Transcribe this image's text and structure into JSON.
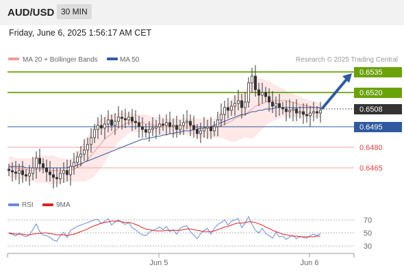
{
  "header": {
    "symbol": "AUD/USD",
    "timeframe": "30 MIN",
    "datetime": "Friday, June 6, 2025 1:56:17 AM CET"
  },
  "colors": {
    "bullish": "#6aa20a",
    "bearish": "#e04040",
    "ma50": "#2f5aa0",
    "bollinger": "#f29a9a",
    "current": "#333333",
    "rsi": "#6688dd",
    "rsi_ma": "#e02020",
    "candle": "#333333"
  },
  "chart_data": [
    {
      "type": "candlestick",
      "legend": [
        {
          "name": "MA 20 + Bollinger Bands",
          "color": "#f29a9a"
        },
        {
          "name": "MA 50",
          "color": "#2f5aa0"
        }
      ],
      "credit": "Research © 2025 Trading Central",
      "x_tick_labels": [
        "Jun 5",
        "Jun 6"
      ],
      "ylim": [
        0.6458,
        0.6549
      ],
      "levels": [
        {
          "value": 0.6535,
          "label": "0.6535",
          "type": "resistance"
        },
        {
          "value": 0.652,
          "label": "0.6520",
          "type": "resistance"
        },
        {
          "value": 0.6508,
          "label": "0.6508",
          "type": "current"
        },
        {
          "value": 0.6495,
          "label": "0.6495",
          "type": "pivot"
        },
        {
          "value": 0.648,
          "label": "0.6480",
          "type": "support"
        },
        {
          "value": 0.6465,
          "label": "0.6465",
          "type": "support"
        }
      ],
      "arrow": {
        "from": 0.6508,
        "to": 0.6535,
        "direction": "up"
      },
      "close": [
        0.6463,
        0.6462,
        0.6461,
        0.6463,
        0.646,
        0.6459,
        0.6461,
        0.6465,
        0.6472,
        0.6468,
        0.6465,
        0.6462,
        0.646,
        0.6458,
        0.6457,
        0.6461,
        0.6463,
        0.646,
        0.6466,
        0.6469,
        0.6473,
        0.6475,
        0.6478,
        0.6482,
        0.6487,
        0.6493,
        0.6496,
        0.6494,
        0.6497,
        0.65,
        0.6496,
        0.6499,
        0.6502,
        0.6501,
        0.65,
        0.6502,
        0.6499,
        0.6498,
        0.6495,
        0.6493,
        0.6491,
        0.6493,
        0.6494,
        0.6495,
        0.6497,
        0.6496,
        0.6498,
        0.6495,
        0.6496,
        0.6493,
        0.6496,
        0.6498,
        0.6499,
        0.6496,
        0.6493,
        0.649,
        0.6492,
        0.6494,
        0.6495,
        0.6492,
        0.6495,
        0.65,
        0.6504,
        0.6509,
        0.6507,
        0.651,
        0.6512,
        0.6514,
        0.6509,
        0.6513,
        0.6527,
        0.6532,
        0.6522,
        0.6518,
        0.652,
        0.6517,
        0.6513,
        0.651,
        0.6512,
        0.6509,
        0.6508,
        0.6506,
        0.6507,
        0.6508,
        0.6505,
        0.6506,
        0.6504,
        0.6503,
        0.6505,
        0.6506,
        0.6505,
        0.6507
      ],
      "ma20": [
        0.6466,
        0.6465,
        0.6465,
        0.6464,
        0.6464,
        0.6464,
        0.6463,
        0.6463,
        0.6464,
        0.6464,
        0.6464,
        0.6464,
        0.6463,
        0.6463,
        0.6463,
        0.6463,
        0.6463,
        0.6463,
        0.6463,
        0.6464,
        0.6465,
        0.6467,
        0.6469,
        0.6471,
        0.6474,
        0.6477,
        0.648,
        0.6483,
        0.6486,
        0.6488,
        0.649,
        0.6492,
        0.6494,
        0.6496,
        0.6497,
        0.6498,
        0.6498,
        0.6498,
        0.6498,
        0.6498,
        0.6497,
        0.6497,
        0.6496,
        0.6496,
        0.6496,
        0.6495,
        0.6495,
        0.6495,
        0.6495,
        0.6495,
        0.6495,
        0.6495,
        0.6495,
        0.6495,
        0.6495,
        0.6494,
        0.6494,
        0.6494,
        0.6494,
        0.6494,
        0.6494,
        0.6495,
        0.6496,
        0.6497,
        0.6498,
        0.6499,
        0.6501,
        0.6502,
        0.6503,
        0.6504,
        0.6506,
        0.6508,
        0.651,
        0.6511,
        0.6512,
        0.6513,
        0.6514,
        0.6514,
        0.6514,
        0.6514,
        0.6514,
        0.6514,
        0.6513,
        0.6513,
        0.6512,
        0.6511,
        0.6511,
        0.651,
        0.651,
        0.6509,
        0.6509,
        0.6508
      ],
      "ma50": [
        0.6466,
        0.6466,
        0.6466,
        0.6466,
        0.6466,
        0.6465,
        0.6465,
        0.6465,
        0.6465,
        0.6465,
        0.6465,
        0.6465,
        0.6465,
        0.6465,
        0.6465,
        0.6465,
        0.6465,
        0.6465,
        0.6466,
        0.6466,
        0.6467,
        0.6468,
        0.6469,
        0.647,
        0.6471,
        0.6472,
        0.6473,
        0.6474,
        0.6475,
        0.6476,
        0.6477,
        0.6478,
        0.6479,
        0.648,
        0.6481,
        0.6482,
        0.6483,
        0.6484,
        0.6485,
        0.6486,
        0.6486,
        0.6487,
        0.6487,
        0.6488,
        0.6488,
        0.6489,
        0.6489,
        0.649,
        0.649,
        0.6491,
        0.6491,
        0.6492,
        0.6492,
        0.6492,
        0.6493,
        0.6493,
        0.6494,
        0.6494,
        0.6495,
        0.6495,
        0.6496,
        0.6497,
        0.6498,
        0.6499,
        0.65,
        0.6501,
        0.6502,
        0.6503,
        0.6504,
        0.6504,
        0.6505,
        0.6506,
        0.6506,
        0.6507,
        0.6507,
        0.6508,
        0.6508,
        0.6508,
        0.6509,
        0.6509,
        0.6509,
        0.6509,
        0.6509,
        0.6509,
        0.6509,
        0.6509,
        0.6509,
        0.6509,
        0.6509,
        0.6509,
        0.6509,
        0.6509
      ],
      "bb_upper": [
        0.6474,
        0.6473,
        0.6472,
        0.6472,
        0.6472,
        0.6472,
        0.6472,
        0.6472,
        0.6474,
        0.6474,
        0.6474,
        0.6474,
        0.6474,
        0.6474,
        0.6473,
        0.6472,
        0.6472,
        0.6471,
        0.6471,
        0.6473,
        0.6476,
        0.648,
        0.6484,
        0.6488,
        0.6492,
        0.6496,
        0.6499,
        0.6501,
        0.6503,
        0.6504,
        0.6504,
        0.6504,
        0.6505,
        0.6505,
        0.6505,
        0.6505,
        0.6505,
        0.6504,
        0.6504,
        0.6504,
        0.6504,
        0.6503,
        0.6502,
        0.6502,
        0.6502,
        0.6502,
        0.6501,
        0.6501,
        0.6501,
        0.6501,
        0.6501,
        0.6501,
        0.6501,
        0.6501,
        0.6501,
        0.6501,
        0.6501,
        0.6501,
        0.6501,
        0.6501,
        0.6501,
        0.6503,
        0.6506,
        0.6509,
        0.6512,
        0.6515,
        0.6517,
        0.6519,
        0.652,
        0.6522,
        0.6526,
        0.6531,
        0.6532,
        0.6531,
        0.653,
        0.6529,
        0.6528,
        0.6527,
        0.6525,
        0.6524,
        0.6523,
        0.6521,
        0.652,
        0.6519,
        0.6518,
        0.6517,
        0.6516,
        0.6515,
        0.6514,
        0.6514,
        0.6513,
        0.6513
      ],
      "bb_lower": [
        0.6458,
        0.6458,
        0.6458,
        0.6457,
        0.6457,
        0.6456,
        0.6455,
        0.6455,
        0.6454,
        0.6454,
        0.6454,
        0.6454,
        0.6453,
        0.6453,
        0.6453,
        0.6454,
        0.6454,
        0.6455,
        0.6455,
        0.6455,
        0.6455,
        0.6455,
        0.6455,
        0.6456,
        0.6457,
        0.6459,
        0.6462,
        0.6465,
        0.6469,
        0.6473,
        0.6477,
        0.6481,
        0.6484,
        0.6486,
        0.6488,
        0.649,
        0.6491,
        0.6491,
        0.6491,
        0.6491,
        0.649,
        0.649,
        0.649,
        0.649,
        0.649,
        0.6489,
        0.6489,
        0.6489,
        0.6489,
        0.6489,
        0.6489,
        0.6489,
        0.6489,
        0.6489,
        0.6489,
        0.6487,
        0.6487,
        0.6487,
        0.6487,
        0.6487,
        0.6487,
        0.6487,
        0.6487,
        0.6486,
        0.6485,
        0.6484,
        0.6484,
        0.6485,
        0.6486,
        0.6487,
        0.6487,
        0.6486,
        0.6488,
        0.6491,
        0.6493,
        0.6496,
        0.6498,
        0.6499,
        0.65,
        0.6501,
        0.6502,
        0.6502,
        0.6502,
        0.6502,
        0.6502,
        0.6502,
        0.6502,
        0.6502,
        0.6502,
        0.6502,
        0.6502,
        0.6502
      ]
    },
    {
      "type": "line",
      "legend": [
        {
          "name": "RSI",
          "color": "#6688dd"
        },
        {
          "name": "9MA",
          "color": "#e02020"
        }
      ],
      "ylim": [
        20,
        80
      ],
      "y_ticks": [
        70,
        50,
        30
      ],
      "series": [
        {
          "name": "RSI",
          "values": [
            49,
            48,
            45,
            50,
            46,
            44,
            47,
            55,
            64,
            52,
            47,
            46,
            43,
            39,
            37,
            46,
            51,
            43,
            54,
            57,
            60,
            62,
            64,
            66,
            68,
            70,
            71,
            64,
            68,
            72,
            62,
            67,
            70,
            66,
            63,
            66,
            58,
            55,
            50,
            47,
            46,
            51,
            54,
            56,
            59,
            55,
            60,
            52,
            55,
            48,
            57,
            60,
            61,
            52,
            47,
            41,
            49,
            54,
            57,
            48,
            57,
            63,
            66,
            70,
            62,
            68,
            70,
            72,
            58,
            65,
            75,
            63,
            54,
            50,
            57,
            49,
            46,
            42,
            51,
            44,
            45,
            40,
            44,
            46,
            41,
            45,
            43,
            42,
            46,
            48,
            46,
            49
          ]
        },
        {
          "name": "9MA",
          "values": [
            50,
            49,
            48,
            48,
            48,
            47,
            47,
            48,
            49,
            49,
            50,
            50,
            49,
            48,
            47,
            47,
            47,
            46,
            47,
            48,
            50,
            52,
            54,
            56,
            59,
            61,
            63,
            65,
            66,
            67,
            68,
            68,
            68,
            67,
            66,
            66,
            65,
            63,
            61,
            58,
            56,
            55,
            54,
            53,
            53,
            53,
            54,
            54,
            54,
            54,
            54,
            55,
            56,
            56,
            55,
            54,
            53,
            52,
            52,
            52,
            53,
            55,
            57,
            59,
            60,
            62,
            64,
            65,
            65,
            66,
            67,
            67,
            66,
            64,
            62,
            59,
            57,
            54,
            52,
            50,
            48,
            47,
            46,
            45,
            45,
            44,
            44,
            44,
            44,
            44,
            45,
            45
          ]
        }
      ]
    }
  ]
}
